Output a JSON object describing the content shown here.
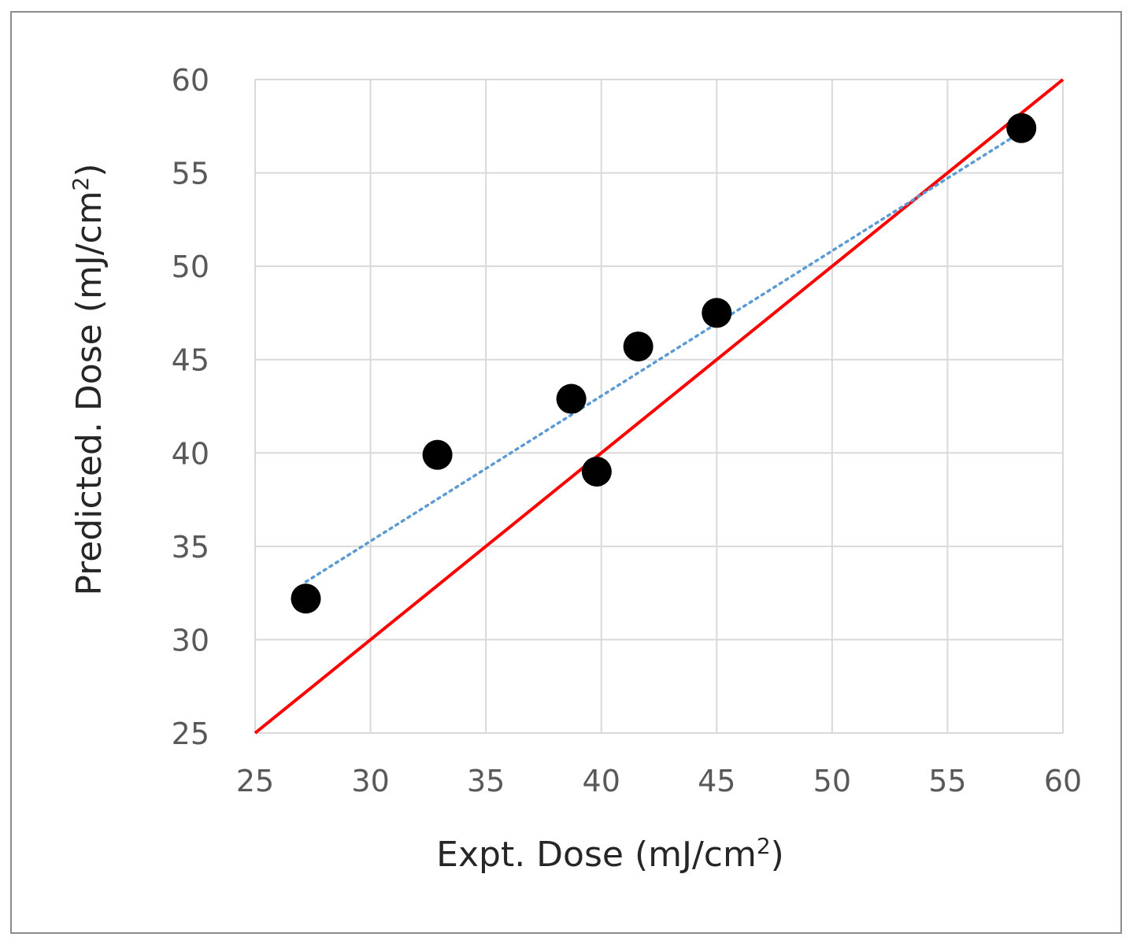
{
  "chart_data": {
    "type": "scatter",
    "xlabel": "Expt. Dose (mJ/cm",
    "xlabel_sup": "2",
    "xlabel_close": ")",
    "ylabel": "Predicted. Dose (mJ/cm",
    "ylabel_sup": "2",
    "ylabel_close": ")",
    "xlim": [
      25,
      60
    ],
    "ylim": [
      25,
      60
    ],
    "x_ticks": [
      "25",
      "30",
      "35",
      "40",
      "45",
      "50",
      "55",
      "60"
    ],
    "y_ticks": [
      "25",
      "30",
      "35",
      "40",
      "45",
      "50",
      "55",
      "60"
    ],
    "grid": true,
    "series": [
      {
        "kind": "points",
        "color": "#000000",
        "x": [
          27.2,
          32.9,
          38.7,
          39.8,
          41.6,
          45.0,
          58.2
        ],
        "y": [
          32.2,
          39.9,
          42.9,
          39.0,
          45.7,
          47.5,
          57.4
        ]
      },
      {
        "kind": "reference-line",
        "color": "#ff0000",
        "x": [
          25,
          60
        ],
        "y": [
          25,
          60
        ]
      },
      {
        "kind": "trendline",
        "style": "dotted",
        "color": "#5b9bd5",
        "x": [
          27.2,
          58.2
        ],
        "y": [
          33.1,
          57.2
        ]
      }
    ]
  }
}
